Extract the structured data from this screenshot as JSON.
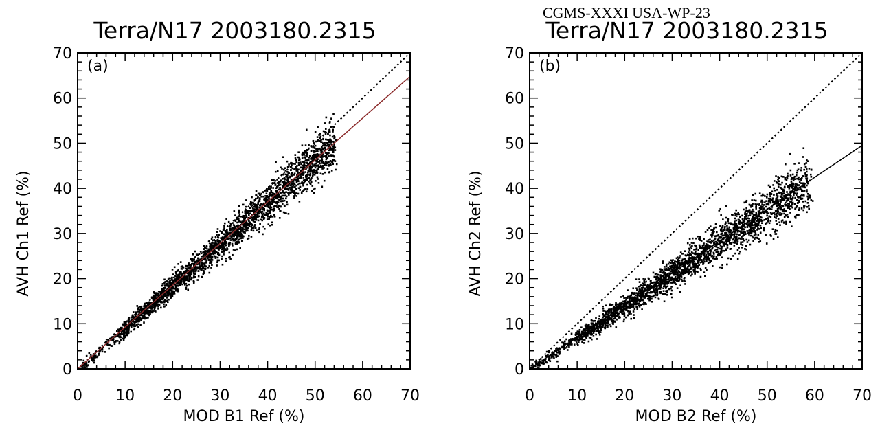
{
  "header": {
    "document_id": "CGMS-XXXI USA-WP-23"
  },
  "chart_data": [
    {
      "type": "scatter",
      "panel": "(a)",
      "title": "Terra/N17 2003180.2315",
      "xlabel": "MOD B1 Ref (%)",
      "ylabel": "AVH Ch1 Ref (%)",
      "xlim": [
        0,
        70
      ],
      "ylim": [
        0,
        70
      ],
      "xticks": [
        "0",
        "10",
        "20",
        "30",
        "40",
        "50",
        "60",
        "70"
      ],
      "yticks": [
        "0",
        "10",
        "20",
        "30",
        "40",
        "50",
        "60",
        "70"
      ],
      "one_to_one_line": {
        "style": "dotted",
        "x": [
          0,
          70
        ],
        "y": [
          0,
          70
        ]
      },
      "fit_line": {
        "style": "solid",
        "color": "#8b2a2a",
        "x": [
          0,
          70
        ],
        "y": [
          0,
          64.8
        ]
      },
      "scatter_cloud": {
        "x_range": [
          0.5,
          54
        ],
        "slope": 0.926,
        "color": "#000000"
      }
    },
    {
      "type": "scatter",
      "panel": "(b)",
      "title": "Terra/N17 2003180.2315",
      "xlabel": "MOD B2 Ref (%)",
      "ylabel": "AVH Ch2 Ref (%)",
      "xlim": [
        0,
        70
      ],
      "ylim": [
        0,
        70
      ],
      "xticks": [
        "0",
        "10",
        "20",
        "30",
        "40",
        "50",
        "60",
        "70"
      ],
      "yticks": [
        "0",
        "10",
        "20",
        "30",
        "40",
        "50",
        "60",
        "70"
      ],
      "one_to_one_line": {
        "style": "dotted",
        "x": [
          0,
          70
        ],
        "y": [
          0,
          70
        ]
      },
      "fit_line": {
        "style": "solid",
        "color": "#000000",
        "x": [
          0,
          70
        ],
        "y": [
          0,
          49.5
        ]
      },
      "scatter_cloud": {
        "x_range": [
          0.5,
          59
        ],
        "slope": 0.707,
        "color": "#000000"
      }
    }
  ]
}
